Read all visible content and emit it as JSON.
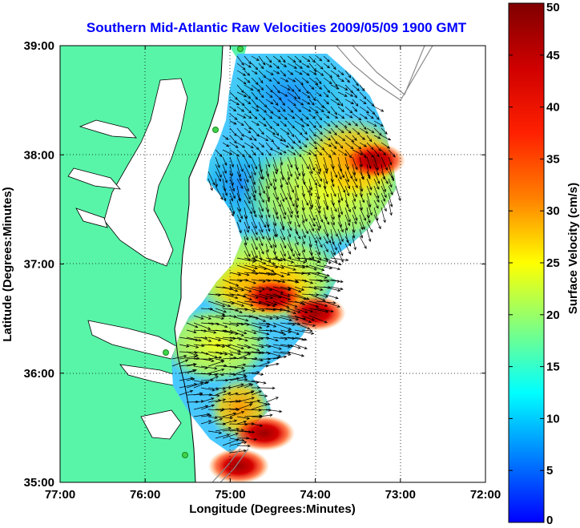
{
  "chart_data": {
    "type": "heatmap",
    "title": "Southern Mid-Atlantic Raw Velocities 2009/05/09 1900 GMT",
    "xlabel": "Longitude (Degrees:Minutes)",
    "ylabel": "Latitude (Degrees:Minutes)",
    "x_ticks": [
      "77:00",
      "76:00",
      "75:00",
      "74:00",
      "73:00",
      "72:00"
    ],
    "x_tick_values": [
      -77,
      -76,
      -75,
      -74,
      -73,
      -72
    ],
    "y_ticks": [
      "39:00",
      "38:00",
      "37:00",
      "36:00",
      "35:00"
    ],
    "y_tick_values": [
      39,
      38,
      37,
      36,
      35
    ],
    "xlim": [
      -77,
      -72
    ],
    "ylim": [
      35,
      39
    ],
    "grid": "dotted",
    "colorbar": {
      "label": "Surface Velocity (cm/s)",
      "range": [
        0,
        50
      ],
      "ticks": [
        "0",
        "5",
        "10",
        "15",
        "20",
        "25",
        "30",
        "35",
        "40",
        "45",
        "50"
      ],
      "tick_values": [
        0,
        5,
        10,
        15,
        20,
        25,
        30,
        35,
        40,
        45,
        50
      ],
      "colormap": "jet"
    },
    "hotspots": [
      {
        "lon": -73.3,
        "lat": 37.95,
        "speed_cm_s": 45
      },
      {
        "lon": -74.5,
        "lat": 36.7,
        "speed_cm_s": 48
      },
      {
        "lon": -74.0,
        "lat": 36.55,
        "speed_cm_s": 50
      },
      {
        "lon": -74.6,
        "lat": 35.45,
        "speed_cm_s": 46
      },
      {
        "lon": -74.9,
        "lat": 35.15,
        "speed_cm_s": 46
      }
    ],
    "colors": {
      "land": "#58f5a8",
      "water": "#ffffff",
      "arrows": "#000000",
      "coast": "#000000",
      "stations": "#3fd24a",
      "title": "#0000ff"
    }
  }
}
